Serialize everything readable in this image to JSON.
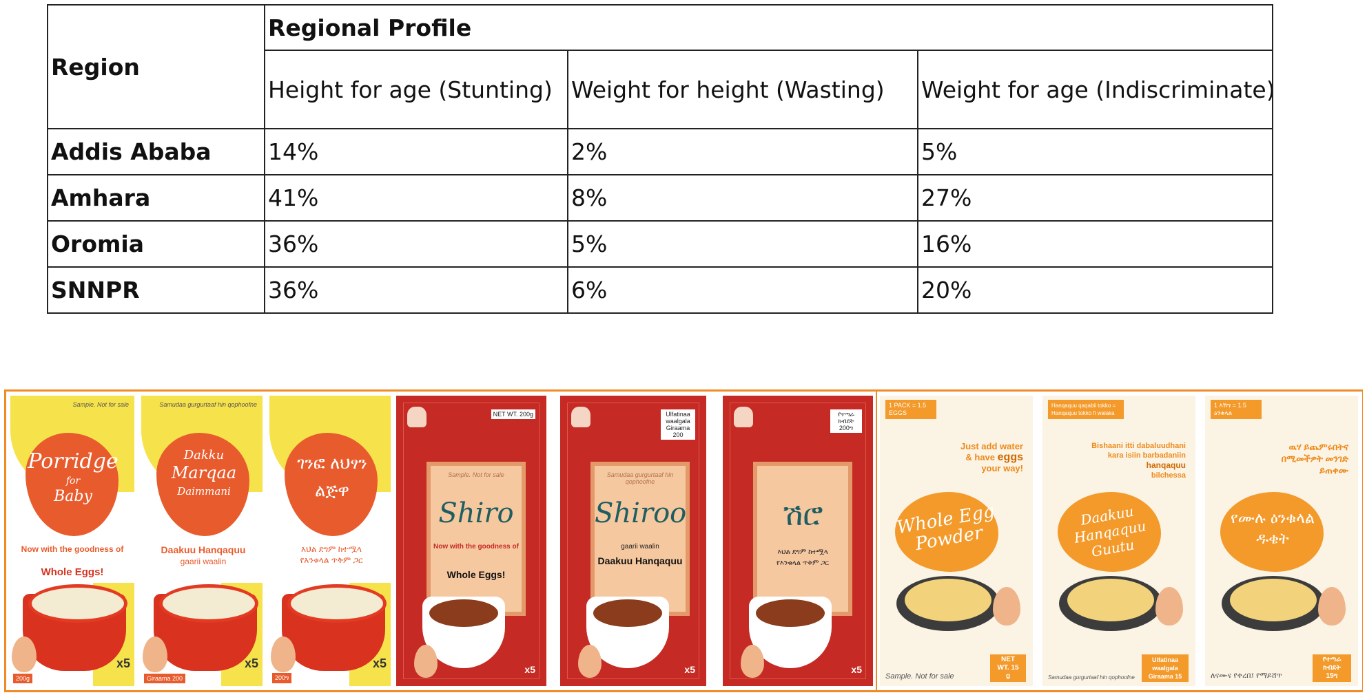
{
  "table": {
    "region_header": "Region",
    "group_header": "Regional Profile",
    "columns": [
      "Height for age (Stunting)",
      "Weight for height (Wasting)",
      "Weight for age (Indiscriminate)"
    ],
    "rows": [
      {
        "region": "Addis Ababa",
        "values": [
          "14%",
          "2%",
          "5%"
        ]
      },
      {
        "region": "Amhara",
        "values": [
          "41%",
          "8%",
          "27%"
        ]
      },
      {
        "region": "Oromia",
        "values": [
          "36%",
          "5%",
          "16%"
        ]
      },
      {
        "region": "SNNPR",
        "values": [
          "36%",
          "6%",
          "20%"
        ]
      }
    ]
  },
  "packages": {
    "porridge": [
      {
        "note": "Sample. Not for sale",
        "title_1": "Porridge",
        "title_2": "for",
        "title_3": "Baby",
        "tagline": "Now with the goodness of",
        "subtitle": "Whole Eggs!",
        "pack_count": "x5",
        "weight": "200g"
      },
      {
        "note": "Samudaa gurgurtaaf hin qophoofne",
        "title_1": "Dakku",
        "title_2": "Marqaa",
        "title_3": "Daimmani",
        "tagline": "",
        "subtitle": "Daakuu Hanqaquu",
        "subtitle_2": "gaarii waalin",
        "pack_count": "x5",
        "weight": "Giraama 200"
      },
      {
        "note": "",
        "title_1": "ገንፎ ለህፃን",
        "title_2": "",
        "title_3": "ልጅዋ",
        "tagline": "",
        "subtitle": "እህል ደግም ከተሟላ",
        "subtitle_2": "የእንቁላል ጥቅም ጋር",
        "pack_count": "x5",
        "weight": "200ግ"
      }
    ],
    "shiro": [
      {
        "note": "Sample. Not for sale",
        "title": "Shiro",
        "tagline": "Now with the goodness of",
        "subtitle": "Whole Eggs!",
        "net": "NET WT. 200g",
        "pack_count": "x5"
      },
      {
        "note": "Samudaa gurgurtaaf hin qophoofne",
        "title": "Shiroo",
        "tagline": "gaarii waalin",
        "subtitle": "Daakuu Hanqaquu",
        "net": "Ulfatinaa waalgala Giraama 200",
        "pack_count": "x5"
      },
      {
        "note": "",
        "title": "ሽሮ",
        "tagline": "እህል ደግም ከተሟላ",
        "subtitle": "የእንቁላል ጥቅም ጋር",
        "net": "የተጣራ ክብደት 200ግ",
        "pack_count": "x5"
      }
    ],
    "egg_powder": [
      {
        "badge": "1 PACK = 1.5 EGGS",
        "tagline_1": "Just add water",
        "tagline_2": "& have",
        "tagline_emph": "eggs",
        "tagline_3": "your way!",
        "title": "Whole Egg Powder",
        "note": "Sample. Not for sale",
        "net": "NET WT. 15 g"
      },
      {
        "badge": "Hanqaquu qaqabii tokko = Hanqaquu tokko fi walaka",
        "tagline_1": "Bishaani itti dabaluudhani",
        "tagline_2": "kara isiin barbadaniin",
        "tagline_emph": "hanqaquu",
        "tagline_3": "bilchessa",
        "title": "Daakuu Hanqaquu Guutu",
        "note": "Samudaa gurgurtaaf hin qophoofne",
        "net": "Ulfatinaa waalgala Giraama 15"
      },
      {
        "badge": "1 እሽግ = 1.5 ዕንቁላል",
        "tagline_1": "ዉሃ ይጨምሩበትና",
        "tagline_2": "በሚመችዎት መንገድ",
        "tagline_emph": "",
        "tagline_3": "ይጠቀሙ",
        "title": "የሙሉ ዕንቁላል ዱቄት",
        "note": "ለናሙና የቀረበ፤ የማይሸጥ",
        "net": "የተጣራ ክብደት 15ግ"
      }
    ]
  },
  "colors": {
    "border_orange": "#f08a24",
    "porridge_orange": "#e85b2d",
    "porridge_yellow": "#f6e34b",
    "shiro_red": "#c62a24",
    "shiro_teal": "#1e5d60",
    "egg_orange": "#f39a2a"
  }
}
